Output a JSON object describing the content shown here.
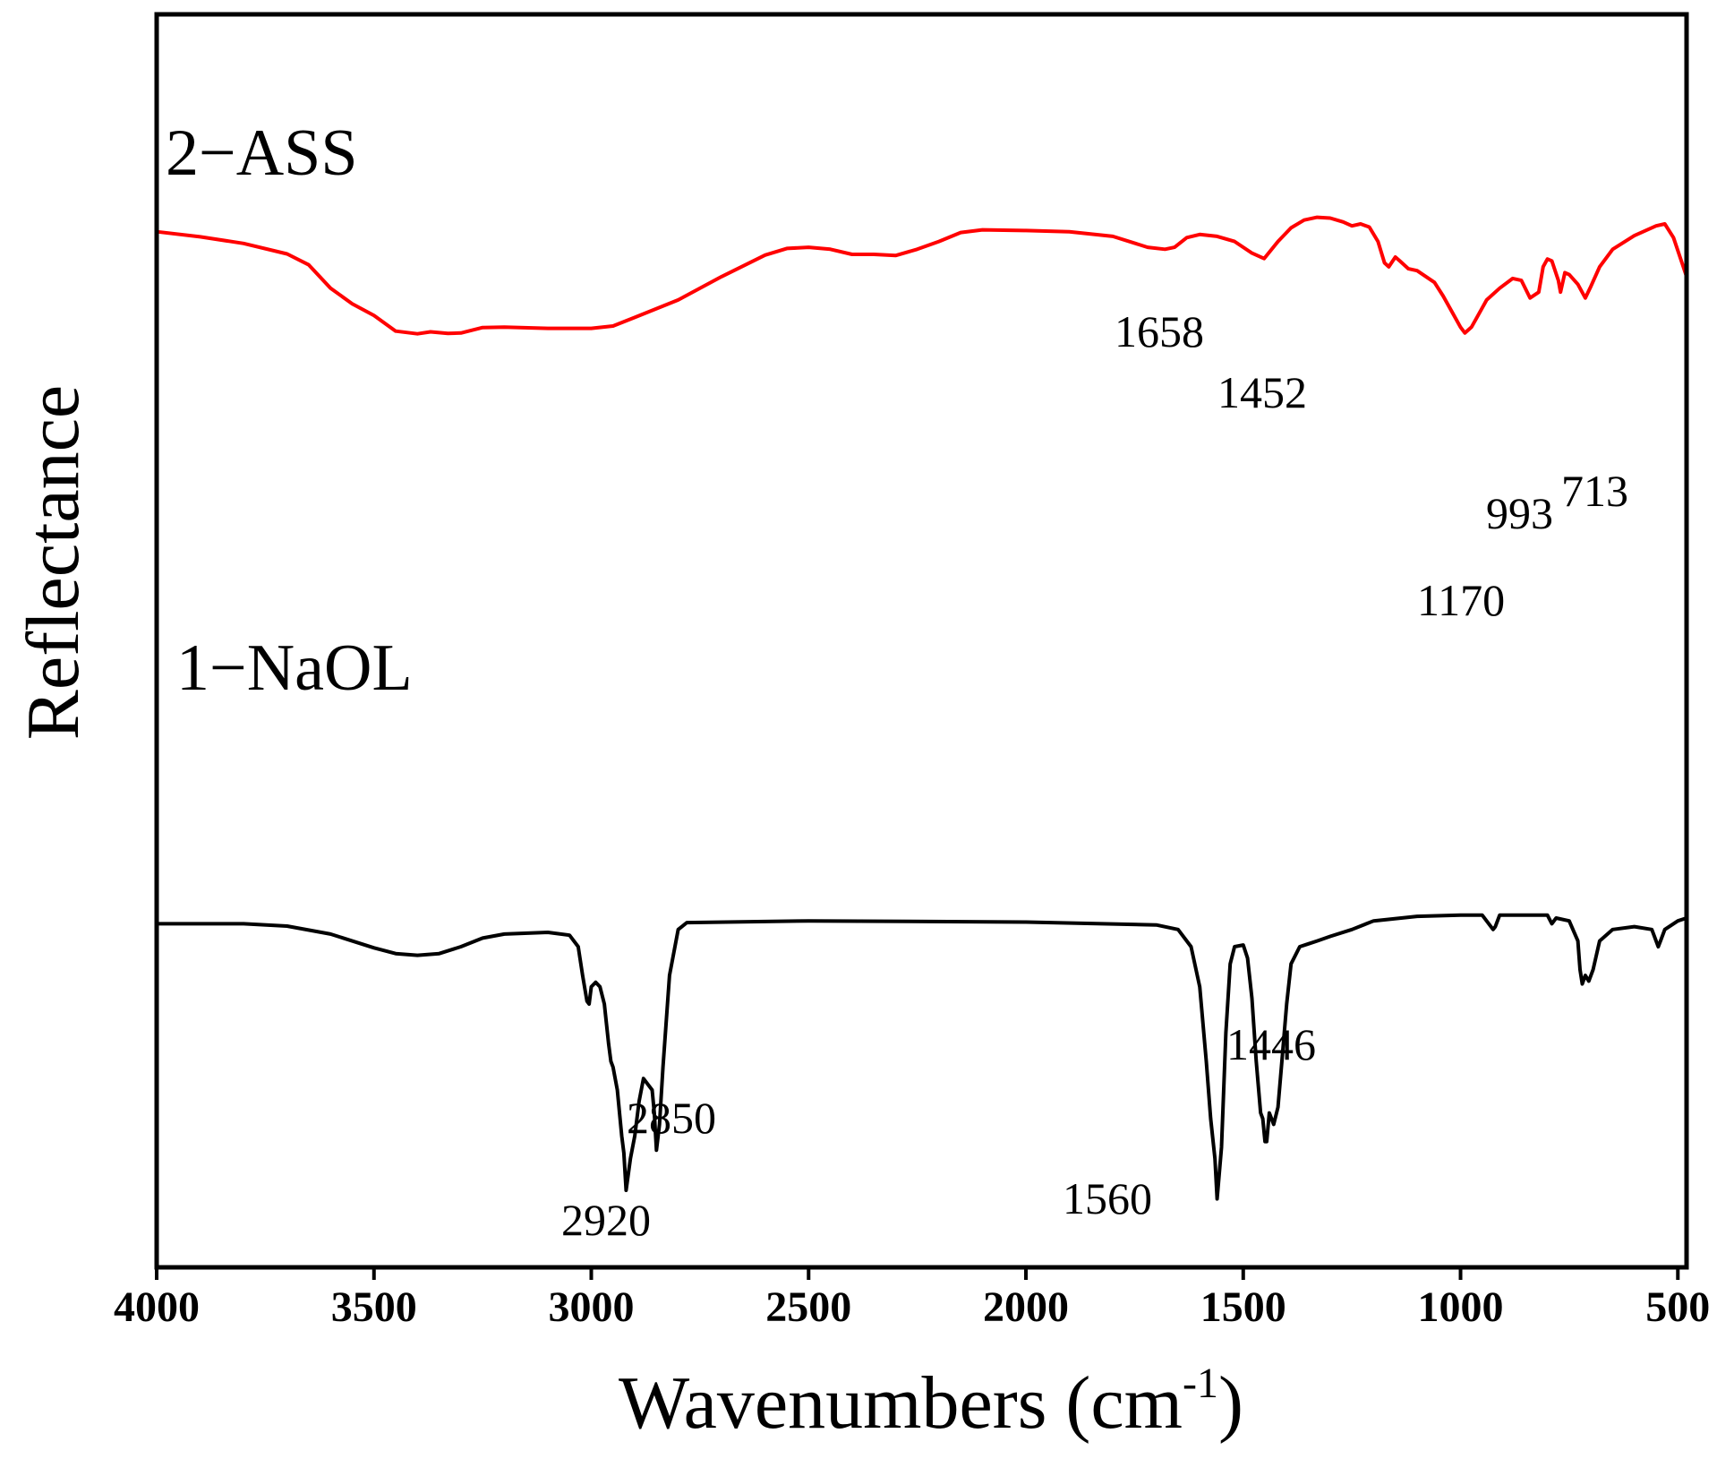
{
  "chart_data": {
    "type": "line",
    "title": "",
    "xlabel": "Wavenumbers (cm",
    "xlabel_sup": "-1",
    "ylabel": "Reflectance",
    "xlim": [
      4000,
      480
    ],
    "x_reversed": true,
    "ylim": [
      0,
      100
    ],
    "x_ticks": [
      4000,
      3500,
      3000,
      2500,
      2000,
      1500,
      1000,
      500
    ],
    "x_tick_labels": [
      "4000",
      "3500",
      "3000",
      "2500",
      "2000",
      "1500",
      "1000",
      "500"
    ],
    "grid": false,
    "legend": "none",
    "series": [
      {
        "name": "2−ASS",
        "label": "2−ASS",
        "color": "#ff0000",
        "points": [
          [
            4000,
            86.5
          ],
          [
            3900,
            85.2
          ],
          [
            3800,
            83.5
          ],
          [
            3700,
            80.8
          ],
          [
            3650,
            78
          ],
          [
            3600,
            72
          ],
          [
            3550,
            68
          ],
          [
            3500,
            65
          ],
          [
            3450,
            61
          ],
          [
            3400,
            60.3
          ],
          [
            3370,
            60.8
          ],
          [
            3330,
            60.4
          ],
          [
            3300,
            60.5
          ],
          [
            3250,
            61.9
          ],
          [
            3200,
            62
          ],
          [
            3100,
            61.7
          ],
          [
            3000,
            61.7
          ],
          [
            2950,
            62.3
          ],
          [
            2900,
            64.5
          ],
          [
            2800,
            69
          ],
          [
            2700,
            75
          ],
          [
            2600,
            80.5
          ],
          [
            2550,
            82.2
          ],
          [
            2500,
            82.5
          ],
          [
            2450,
            82
          ],
          [
            2400,
            80.7
          ],
          [
            2350,
            80.7
          ],
          [
            2300,
            80.4
          ],
          [
            2250,
            82
          ],
          [
            2200,
            84
          ],
          [
            2150,
            86.3
          ],
          [
            2100,
            87
          ],
          [
            2000,
            86.8
          ],
          [
            1900,
            86.5
          ],
          [
            1800,
            85.3
          ],
          [
            1720,
            82.5
          ],
          [
            1680,
            82
          ],
          [
            1658,
            82.5
          ],
          [
            1630,
            85
          ],
          [
            1600,
            85.8
          ],
          [
            1560,
            85.3
          ],
          [
            1520,
            84
          ],
          [
            1480,
            81
          ],
          [
            1452,
            79.6
          ],
          [
            1420,
            84
          ],
          [
            1390,
            87.5
          ],
          [
            1360,
            89.5
          ],
          [
            1330,
            90.2
          ],
          [
            1300,
            90
          ],
          [
            1270,
            89
          ],
          [
            1250,
            88
          ],
          [
            1230,
            88.5
          ],
          [
            1210,
            87.7
          ],
          [
            1190,
            84
          ],
          [
            1175,
            78.5
          ],
          [
            1165,
            77.5
          ],
          [
            1150,
            80
          ],
          [
            1140,
            79
          ],
          [
            1120,
            77
          ],
          [
            1100,
            76.5
          ],
          [
            1060,
            73.5
          ],
          [
            1040,
            70
          ],
          [
            1020,
            66
          ],
          [
            1000,
            62
          ],
          [
            990,
            60.5
          ],
          [
            975,
            62
          ],
          [
            960,
            65
          ],
          [
            940,
            69
          ],
          [
            910,
            72
          ],
          [
            880,
            74.5
          ],
          [
            860,
            74
          ],
          [
            840,
            69.5
          ],
          [
            820,
            71
          ],
          [
            810,
            77.5
          ],
          [
            800,
            79.5
          ],
          [
            790,
            79
          ],
          [
            775,
            74
          ],
          [
            770,
            71
          ],
          [
            760,
            76
          ],
          [
            750,
            75.5
          ],
          [
            730,
            73
          ],
          [
            713,
            69.5
          ],
          [
            700,
            72.5
          ],
          [
            680,
            77.5
          ],
          [
            650,
            82
          ],
          [
            600,
            85.5
          ],
          [
            550,
            88
          ],
          [
            530,
            88.5
          ],
          [
            510,
            85
          ],
          [
            495,
            80
          ],
          [
            480,
            75
          ]
        ]
      },
      {
        "name": "1−NaOL",
        "label": "1−NaOL",
        "color": "#000000",
        "points": [
          [
            4000,
            49
          ],
          [
            3800,
            49
          ],
          [
            3700,
            48.6
          ],
          [
            3600,
            47.2
          ],
          [
            3500,
            44.8
          ],
          [
            3450,
            43.8
          ],
          [
            3400,
            43.5
          ],
          [
            3350,
            43.8
          ],
          [
            3300,
            45
          ],
          [
            3250,
            46.5
          ],
          [
            3200,
            47.2
          ],
          [
            3100,
            47.5
          ],
          [
            3050,
            47
          ],
          [
            3030,
            45
          ],
          [
            3020,
            40
          ],
          [
            3010,
            35.5
          ],
          [
            3005,
            35
          ],
          [
            3000,
            38
          ],
          [
            2990,
            38.8
          ],
          [
            2980,
            38
          ],
          [
            2970,
            35
          ],
          [
            2960,
            28
          ],
          [
            2955,
            25
          ],
          [
            2950,
            24
          ],
          [
            2940,
            20
          ],
          [
            2930,
            12
          ],
          [
            2925,
            9
          ],
          [
            2920,
            2.5
          ],
          [
            2910,
            8
          ],
          [
            2900,
            12
          ],
          [
            2890,
            18
          ],
          [
            2880,
            22
          ],
          [
            2870,
            21
          ],
          [
            2860,
            20
          ],
          [
            2855,
            16
          ],
          [
            2850,
            9.5
          ],
          [
            2843,
            14
          ],
          [
            2835,
            24
          ],
          [
            2820,
            40
          ],
          [
            2800,
            48
          ],
          [
            2780,
            49.2
          ],
          [
            2500,
            49.5
          ],
          [
            2000,
            49.3
          ],
          [
            1700,
            48.8
          ],
          [
            1650,
            48
          ],
          [
            1620,
            45
          ],
          [
            1600,
            38
          ],
          [
            1585,
            25
          ],
          [
            1575,
            15
          ],
          [
            1565,
            8
          ],
          [
            1560,
            1
          ],
          [
            1550,
            10
          ],
          [
            1540,
            30
          ],
          [
            1530,
            42
          ],
          [
            1520,
            45
          ],
          [
            1500,
            45.3
          ],
          [
            1490,
            43
          ],
          [
            1480,
            36
          ],
          [
            1470,
            25
          ],
          [
            1460,
            16
          ],
          [
            1455,
            15
          ],
          [
            1450,
            11
          ],
          [
            1446,
            11
          ],
          [
            1440,
            16
          ],
          [
            1430,
            14
          ],
          [
            1420,
            17
          ],
          [
            1410,
            26
          ],
          [
            1400,
            35
          ],
          [
            1390,
            42
          ],
          [
            1370,
            45
          ],
          [
            1350,
            45.5
          ],
          [
            1330,
            46
          ],
          [
            1300,
            46.8
          ],
          [
            1250,
            48
          ],
          [
            1200,
            49.5
          ],
          [
            1100,
            50.3
          ],
          [
            1000,
            50.5
          ],
          [
            950,
            50.5
          ],
          [
            925,
            48
          ],
          [
            920,
            48.5
          ],
          [
            910,
            50.5
          ],
          [
            800,
            50.5
          ],
          [
            790,
            49
          ],
          [
            780,
            50
          ],
          [
            750,
            49.5
          ],
          [
            730,
            46
          ],
          [
            725,
            41
          ],
          [
            720,
            38.5
          ],
          [
            713,
            40
          ],
          [
            705,
            39
          ],
          [
            695,
            41
          ],
          [
            680,
            46
          ],
          [
            650,
            48
          ],
          [
            600,
            48.5
          ],
          [
            560,
            48
          ],
          [
            545,
            45
          ],
          [
            540,
            46
          ],
          [
            530,
            48
          ],
          [
            500,
            49.5
          ],
          [
            480,
            50
          ]
        ]
      }
    ],
    "annotations": [
      {
        "text": "1658",
        "series": "2−ASS",
        "x": 1658
      },
      {
        "text": "1452",
        "series": "2−ASS",
        "x": 1452
      },
      {
        "text": "1170",
        "series": "2−ASS",
        "x": 1170
      },
      {
        "text": "993",
        "series": "2−ASS",
        "x": 993
      },
      {
        "text": "713",
        "series": "2−ASS",
        "x": 713
      },
      {
        "text": "2920",
        "series": "1−NaOL",
        "x": 2920
      },
      {
        "text": "2850",
        "series": "1−NaOL",
        "x": 2850
      },
      {
        "text": "1560",
        "series": "1−NaOL",
        "x": 1560
      },
      {
        "text": "1446",
        "series": "1−NaOL",
        "x": 1446
      }
    ]
  }
}
